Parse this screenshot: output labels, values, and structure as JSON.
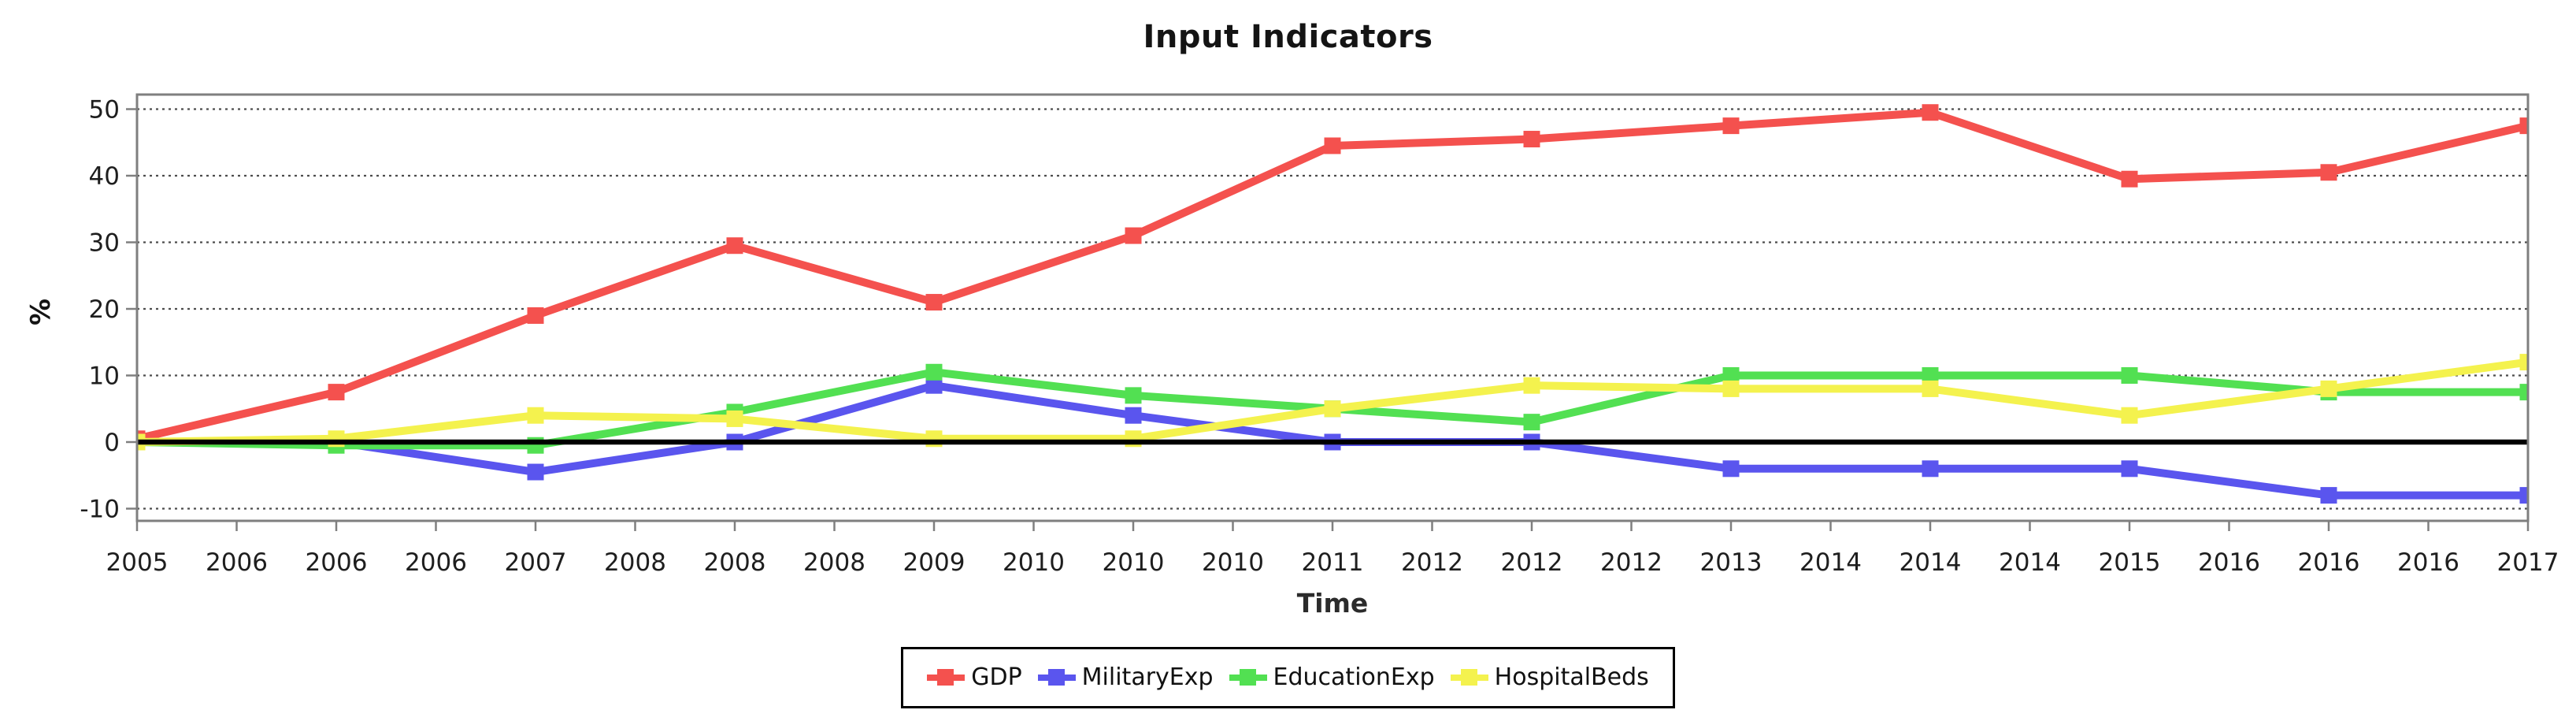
{
  "chart_data": {
    "type": "line",
    "title": "Input Indicators",
    "xlabel": "Time",
    "ylabel": "%",
    "ylim": [
      -10,
      50
    ],
    "y_ticks": [
      50,
      40,
      30,
      20,
      10,
      0,
      -10
    ],
    "x_tick_labels": [
      "2005",
      "2006",
      "2006",
      "2006",
      "2007",
      "2008",
      "2008",
      "2008",
      "2009",
      "2010",
      "2010",
      "2010",
      "2011",
      "2012",
      "2012",
      "2012",
      "2013",
      "2014",
      "2014",
      "2014",
      "2015",
      "2016",
      "2016",
      "2016",
      "2017"
    ],
    "years": [
      2005,
      2006,
      2007,
      2008,
      2009,
      2010,
      2011,
      2012,
      2013,
      2014,
      2015,
      2016,
      2017
    ],
    "grid": "horizontal-dashed",
    "legend_position": "bottom",
    "zero_line": true,
    "zero_line_color": "#000000",
    "axis_border_color": "#7f7f7f",
    "series": [
      {
        "name": "GDP",
        "color": "#f4514e",
        "values": [
          0.5,
          7.5,
          19,
          29.5,
          21,
          31,
          44.5,
          45.5,
          47.5,
          49.5,
          39.5,
          40.5,
          47.5
        ]
      },
      {
        "name": "MilitaryExp",
        "color": "#5a55ee",
        "values": [
          0,
          0,
          -4.5,
          0,
          8.5,
          4,
          0,
          0,
          -4,
          -4,
          -4,
          -8,
          -8
        ]
      },
      {
        "name": "EducationExp",
        "color": "#52e052",
        "values": [
          0,
          -0.5,
          -0.5,
          4.5,
          10.5,
          7,
          5,
          3,
          10,
          10,
          10,
          7.5,
          7.5
        ]
      },
      {
        "name": "HospitalBeds",
        "color": "#f4f24e",
        "values": [
          0,
          0.5,
          4,
          3.5,
          0.5,
          0.5,
          5,
          8.5,
          8,
          8,
          4,
          8,
          12
        ]
      }
    ]
  }
}
